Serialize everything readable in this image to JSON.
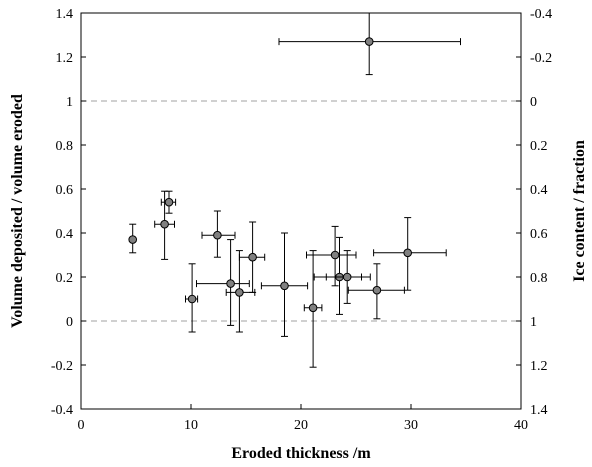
{
  "chart_data": {
    "type": "scatter",
    "title": "",
    "xlabel": "Eroded thickness /m",
    "ylabel": "Volume deposited / volume eroded",
    "y2label": "Ice content / fraction",
    "xlim": [
      0,
      40
    ],
    "ylim": [
      -0.4,
      1.4
    ],
    "y2lim": [
      1.4,
      -0.4
    ],
    "grid": false,
    "legend": "none",
    "x_ticks": [
      0,
      10,
      20,
      30,
      40
    ],
    "x_tick_labels": [
      "0",
      "10",
      "20",
      "30",
      "40"
    ],
    "y_ticks": [
      -0.4,
      -0.2,
      0,
      0.2,
      0.4,
      0.6,
      0.8,
      1,
      1.2,
      1.4
    ],
    "y_tick_labels": [
      "-0.4",
      "-0.2",
      "0",
      "0.2",
      "0.4",
      "0.6",
      "0.8",
      "1",
      "1.2",
      "1.4"
    ],
    "y2_tick_labels": [
      "1.4",
      "1.2",
      "1",
      "0.8",
      "0.6",
      "0.4",
      "0.2",
      "0",
      "-0.2",
      "-0.4"
    ],
    "reference_lines": [
      0,
      1
    ],
    "marker_color": "#808080",
    "reference_line_color": "#a0a0a0",
    "points": [
      {
        "x": 4.7,
        "y": 0.37,
        "y_low": 0.31,
        "y_high": 0.44
      },
      {
        "x": 7.6,
        "y": 0.44,
        "x_low": 6.7,
        "x_high": 8.5,
        "y_low": 0.28,
        "y_high": 0.59
      },
      {
        "x": 8.0,
        "y": 0.54,
        "x_low": 7.3,
        "x_high": 8.6,
        "y_low": 0.49,
        "y_high": 0.59
      },
      {
        "x": 10.1,
        "y": 0.1,
        "x_low": 9.5,
        "x_high": 10.6,
        "y_low": -0.05,
        "y_high": 0.26
      },
      {
        "x": 12.4,
        "y": 0.39,
        "x_low": 11.0,
        "x_high": 14.0,
        "y_low": 0.29,
        "y_high": 0.5
      },
      {
        "x": 13.6,
        "y": 0.17,
        "x_low": 10.5,
        "x_high": 15.3,
        "y_low": -0.02,
        "y_high": 0.37
      },
      {
        "x": 14.4,
        "y": 0.13,
        "x_low": 13.2,
        "x_high": 15.8,
        "y_low": -0.05,
        "y_high": 0.32
      },
      {
        "x": 15.6,
        "y": 0.29,
        "x_low": 14.4,
        "x_high": 16.7,
        "y_low": 0.13,
        "y_high": 0.45
      },
      {
        "x": 18.5,
        "y": 0.16,
        "x_low": 16.4,
        "x_high": 20.6,
        "y_low": -0.07,
        "y_high": 0.4
      },
      {
        "x": 21.1,
        "y": 0.06,
        "x_low": 20.3,
        "x_high": 21.9,
        "y_low": -0.21,
        "y_high": 0.32
      },
      {
        "x": 23.1,
        "y": 0.3,
        "x_low": 20.5,
        "x_high": 25.0,
        "y_low": 0.16,
        "y_high": 0.43
      },
      {
        "x": 23.5,
        "y": 0.2,
        "x_low": 21.2,
        "x_high": 25.5,
        "y_low": 0.03,
        "y_high": 0.38
      },
      {
        "x": 24.2,
        "y": 0.2,
        "x_low": 22.3,
        "x_high": 26.3,
        "y_low": 0.08,
        "y_high": 0.32
      },
      {
        "x": 26.2,
        "y": 1.27,
        "x_low": 18.0,
        "x_high": 34.5,
        "y_low": 1.12,
        "y_high": 1.4
      },
      {
        "x": 26.9,
        "y": 0.14,
        "x_low": 24.3,
        "x_high": 29.4,
        "y_low": 0.01,
        "y_high": 0.26
      },
      {
        "x": 29.7,
        "y": 0.31,
        "x_low": 26.6,
        "x_high": 33.2,
        "y_low": 0.14,
        "y_high": 0.47
      }
    ]
  }
}
